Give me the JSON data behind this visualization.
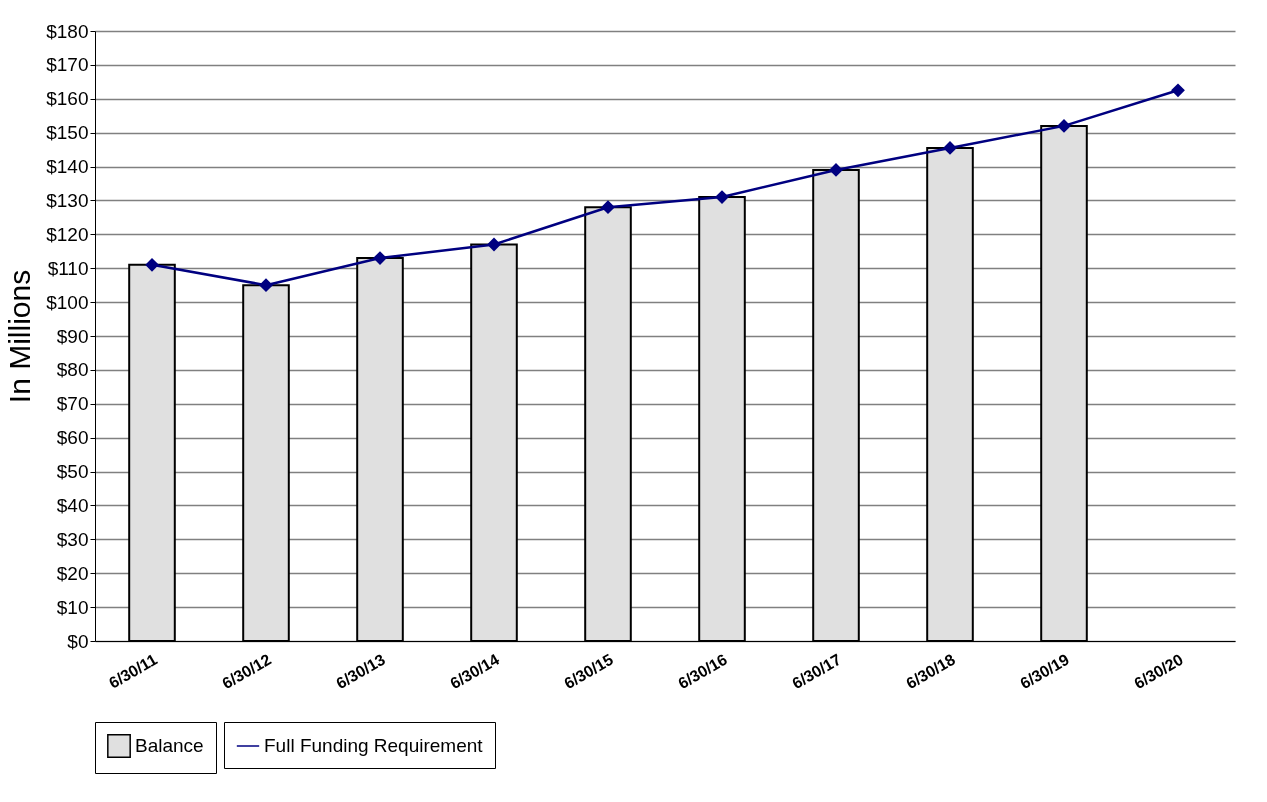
{
  "chart_data": {
    "type": "bar",
    "ylabel": "In Millions",
    "categories": [
      "6/30/11",
      "6/30/12",
      "6/30/13",
      "6/30/14",
      "6/30/15",
      "6/30/16",
      "6/30/17",
      "6/30/18",
      "6/30/19",
      "6/30/20"
    ],
    "series": [
      {
        "name": "Balance",
        "color": "#e0e0e0",
        "values": [
          111,
          105,
          113,
          117,
          128,
          131,
          139,
          145.5,
          152,
          null
        ]
      },
      {
        "name": "Full Funding Requirement",
        "type": "line",
        "color": "#000080",
        "values": [
          111,
          105,
          113,
          117,
          128,
          131,
          139,
          145.5,
          152,
          162.5
        ]
      }
    ],
    "ylim": [
      0,
      180
    ],
    "yticks": [
      {
        "value": 0,
        "label": "$0"
      },
      {
        "value": 10,
        "label": "$10"
      },
      {
        "value": 20,
        "label": "$20"
      },
      {
        "value": 30,
        "label": "$30"
      },
      {
        "value": 40,
        "label": "$40"
      },
      {
        "value": 50,
        "label": "$50"
      },
      {
        "value": 60,
        "label": "$60"
      },
      {
        "value": 70,
        "label": "$70"
      },
      {
        "value": 80,
        "label": "$80"
      },
      {
        "value": 90,
        "label": "$90"
      },
      {
        "value": 100,
        "label": "$100"
      },
      {
        "value": 110,
        "label": "$110"
      },
      {
        "value": 120,
        "label": "$120"
      },
      {
        "value": 130,
        "label": "$130"
      },
      {
        "value": 140,
        "label": "$140"
      },
      {
        "value": 150,
        "label": "$150"
      },
      {
        "value": 160,
        "label": "$160"
      },
      {
        "value": 170,
        "label": "$170"
      },
      {
        "value": 180,
        "label": "$180"
      }
    ],
    "grid": "y",
    "legend": "bottom",
    "marker": "diamond"
  }
}
